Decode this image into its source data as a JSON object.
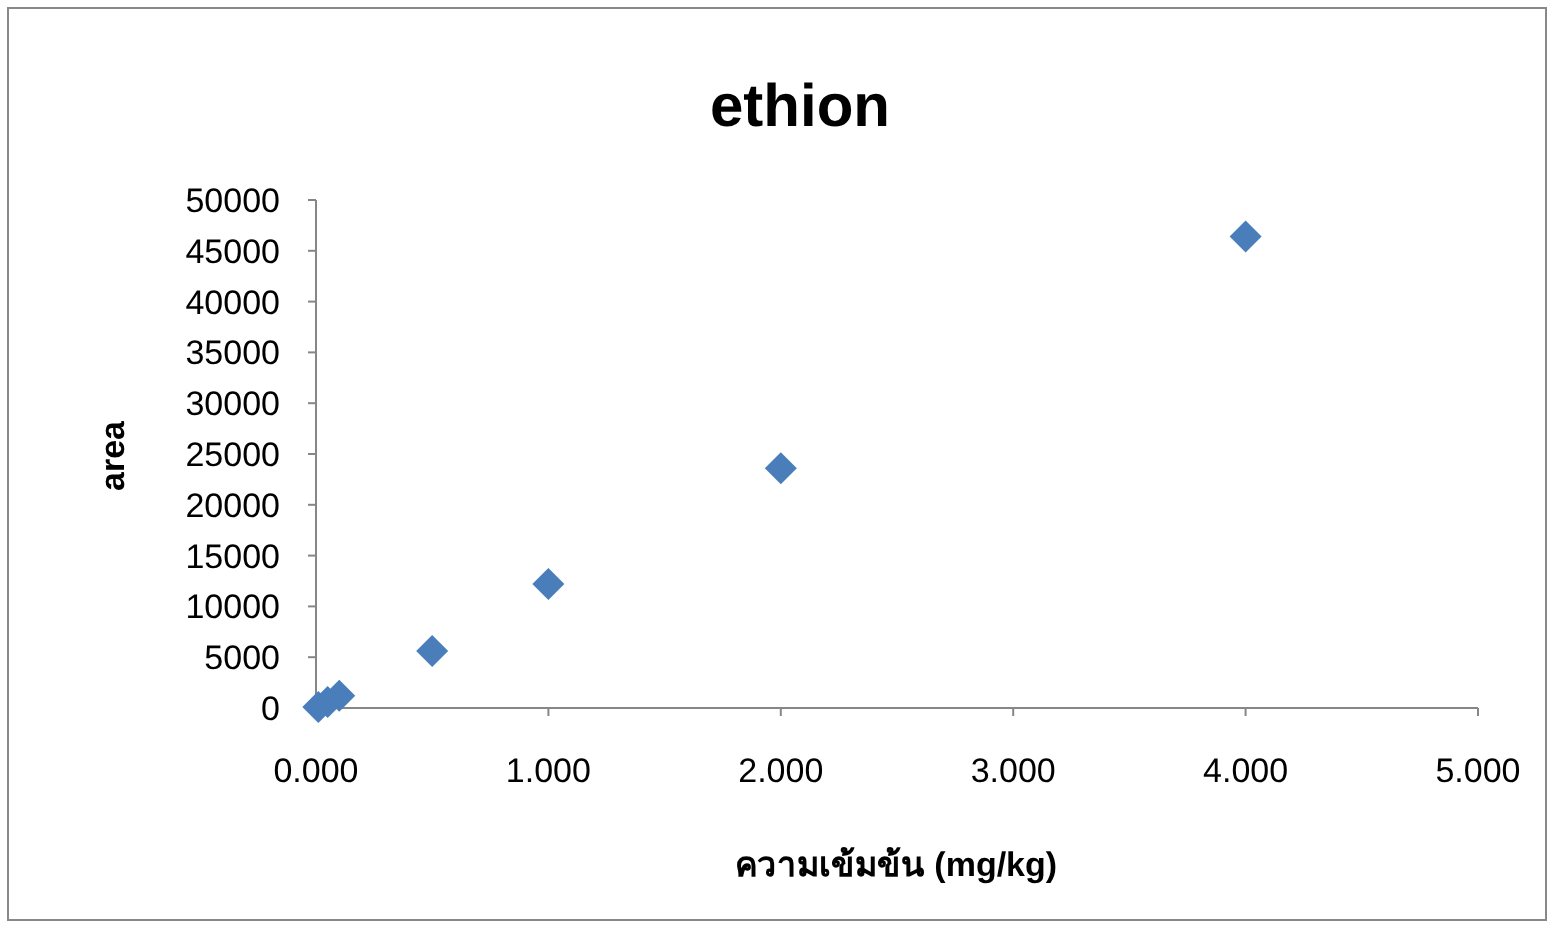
{
  "chart_data": {
    "type": "scatter",
    "title": "ethion",
    "xlabel": "ความเข้มข้น (mg/kg)",
    "ylabel": "area",
    "x": [
      0.01,
      0.05,
      0.1,
      0.5,
      1,
      2,
      4
    ],
    "values": [
      100,
      600,
      1200,
      5600,
      12200,
      23600,
      46400
    ],
    "color": "#4a7ebb",
    "marker": "diamond",
    "grid": false,
    "xlim": [
      0,
      5
    ],
    "xticks": [
      {
        "value": 0,
        "label": "0.000"
      },
      {
        "value": 1,
        "label": "1.000"
      },
      {
        "value": 2,
        "label": "2.000"
      },
      {
        "value": 3,
        "label": "3.000"
      },
      {
        "value": 4,
        "label": "4.000"
      },
      {
        "value": 5,
        "label": "5.000"
      }
    ],
    "ylim": [
      0,
      50000
    ],
    "yticks": [
      0,
      5000,
      10000,
      15000,
      20000,
      25000,
      30000,
      35000,
      40000,
      45000,
      50000
    ]
  }
}
